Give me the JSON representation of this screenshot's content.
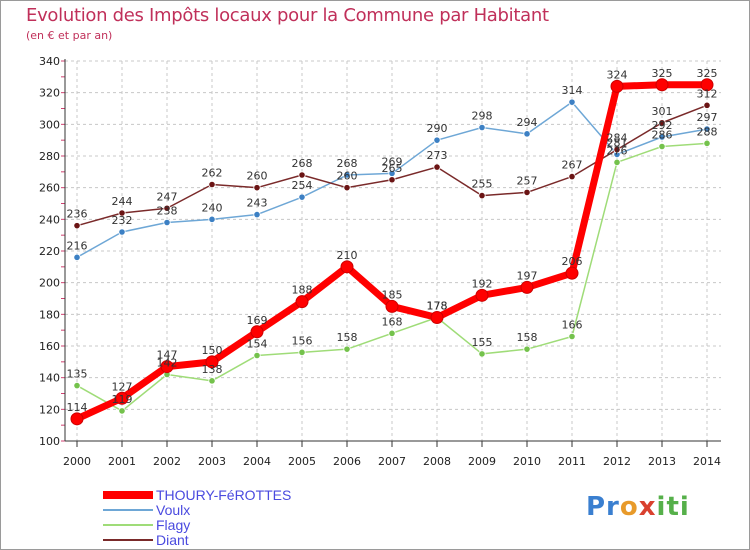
{
  "chart_data": {
    "type": "line",
    "title": "Evolution des Impôts locaux pour la Commune par Habitant",
    "subtitle": "(en € et par an)",
    "xlabel": "",
    "ylabel": "",
    "x": [
      "2000",
      "2001",
      "2002",
      "2003",
      "2004",
      "2005",
      "2006",
      "2007",
      "2008",
      "2009",
      "2010",
      "2011",
      "2012",
      "2013",
      "2014"
    ],
    "ylim": [
      100,
      340
    ],
    "yticks": [
      100,
      120,
      140,
      160,
      180,
      200,
      220,
      240,
      260,
      280,
      300,
      320,
      340
    ],
    "series": [
      {
        "name": "THOURY-FéROTTES",
        "color": "#ff0000",
        "point_color": "#ff0000",
        "values": [
          114,
          127,
          147,
          150,
          169,
          188,
          210,
          185,
          178,
          192,
          197,
          206,
          324,
          325,
          325
        ],
        "labels": [
          "114",
          "127",
          "147",
          "150",
          "169",
          "188",
          "210",
          "185",
          "178",
          "192",
          "197",
          "206",
          "324",
          "325",
          "325"
        ]
      },
      {
        "name": "Voulx",
        "color": "#6ea7d6",
        "point_color": "#3c80c4",
        "values": [
          216,
          232,
          238,
          240,
          243,
          254,
          268,
          269,
          290,
          298,
          294,
          314,
          281,
          292,
          297
        ],
        "labels": [
          "216",
          "232",
          "238",
          "240",
          "243",
          "254",
          "268",
          "269",
          "290",
          "298",
          "294",
          "314",
          "281",
          "292",
          "297"
        ]
      },
      {
        "name": "Flagy",
        "color": "#9fdc78",
        "point_color": "#74c24c",
        "values": [
          135,
          119,
          142,
          138,
          154,
          156,
          158,
          168,
          178,
          155,
          158,
          166,
          276,
          286,
          288
        ],
        "labels": [
          "135",
          "119",
          "142",
          "138",
          "154",
          "156",
          "158",
          "168",
          "178",
          "155",
          "158",
          "166",
          "276",
          "286",
          "288"
        ]
      },
      {
        "name": "Diant",
        "color": "#7a2a2a",
        "point_color": "#6b1414",
        "values": [
          236,
          244,
          247,
          262,
          260,
          268,
          260,
          265,
          273,
          255,
          257,
          267,
          284,
          301,
          312
        ],
        "labels": [
          "236",
          "244",
          "247",
          "262",
          "260",
          "268",
          "260",
          "265",
          "273",
          "255",
          "257",
          "267",
          "284",
          "301",
          "312"
        ]
      }
    ],
    "grid": true,
    "legend_position": "bottom-left"
  },
  "branding": {
    "logo_parts": [
      "Pr",
      "o",
      "x",
      "iti"
    ]
  }
}
